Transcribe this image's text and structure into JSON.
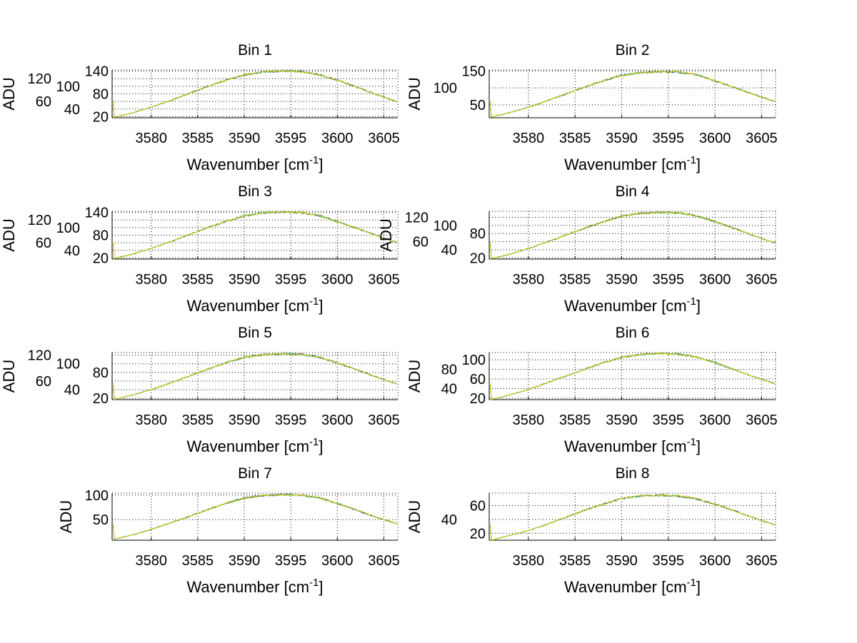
{
  "chart_data": {
    "type": "line",
    "layout": "4x2 subplots",
    "x": [
      3576,
      3578,
      3580,
      3582,
      3584,
      3586,
      3588,
      3590,
      3592,
      3594,
      3596,
      3598,
      3600,
      3602,
      3604,
      3606,
      3606.5
    ],
    "xlim": [
      3575.8,
      3606.5
    ],
    "xticks": [
      3580,
      3585,
      3590,
      3595,
      3600,
      3605
    ],
    "xlabel": "Wavenumber [cm",
    "xlabel_sup": "-1",
    "xlabel_close": "]",
    "ylabel": "ADU",
    "grid": true,
    "colors": {
      "overlay": "#e8cc00",
      "under": "#1f3a8a",
      "under2": "#2fbf80"
    },
    "subplots": [
      {
        "title": "Bin 1",
        "ylim": [
          17,
          143
        ],
        "yticks": [
          20,
          40,
          60,
          80,
          100,
          120,
          140
        ],
        "values": [
          18,
          30,
          45,
          62,
          80,
          99,
          116,
          130,
          138,
          140,
          139,
          131,
          116,
          99,
          80,
          63,
          59
        ]
      },
      {
        "title": "Bin 2",
        "ylim": [
          12,
          153
        ],
        "yticks": [
          50,
          100,
          150
        ],
        "values": [
          14,
          27,
          43,
          62,
          82,
          102,
          121,
          137,
          145,
          148,
          147,
          139,
          121,
          102,
          82,
          64,
          60
        ]
      },
      {
        "title": "Bin 3",
        "ylim": [
          17,
          143
        ],
        "yticks": [
          20,
          40,
          60,
          80,
          100,
          120,
          140
        ],
        "values": [
          18,
          30,
          45,
          62,
          81,
          99,
          116,
          131,
          139,
          141,
          140,
          132,
          116,
          99,
          81,
          64,
          60
        ]
      },
      {
        "title": "Bin 4",
        "ylim": [
          17,
          135
        ],
        "yticks": [
          20,
          40,
          60,
          80,
          100,
          120
        ],
        "values": [
          18,
          29,
          43,
          59,
          76,
          93,
          109,
          123,
          130,
          132,
          131,
          124,
          109,
          93,
          76,
          60,
          57
        ]
      },
      {
        "title": "Bin 5",
        "ylim": [
          17,
          126
        ],
        "yticks": [
          20,
          40,
          60,
          80,
          100,
          120
        ],
        "values": [
          17,
          28,
          40,
          55,
          71,
          87,
          102,
          115,
          121,
          123,
          122,
          116,
          102,
          87,
          71,
          56,
          53
        ]
      },
      {
        "title": "Bin 6",
        "ylim": [
          17,
          115
        ],
        "yticks": [
          20,
          40,
          60,
          80,
          100
        ],
        "values": [
          17,
          27,
          38,
          52,
          66,
          80,
          94,
          105,
          111,
          113,
          112,
          106,
          94,
          80,
          66,
          53,
          50
        ]
      },
      {
        "title": "Bin 7",
        "ylim": [
          8,
          104
        ],
        "yticks": [
          50,
          100
        ],
        "values": [
          10,
          19,
          30,
          43,
          56,
          70,
          83,
          94,
          99,
          101,
          100,
          95,
          83,
          70,
          56,
          44,
          41
        ]
      },
      {
        "title": "Bin 8",
        "ylim": [
          10,
          78
        ],
        "yticks": [
          20,
          40,
          60
        ],
        "values": [
          10,
          17,
          24,
          33,
          43,
          53,
          62,
          70,
          74,
          75,
          74,
          70,
          62,
          53,
          43,
          34,
          32
        ]
      }
    ]
  }
}
